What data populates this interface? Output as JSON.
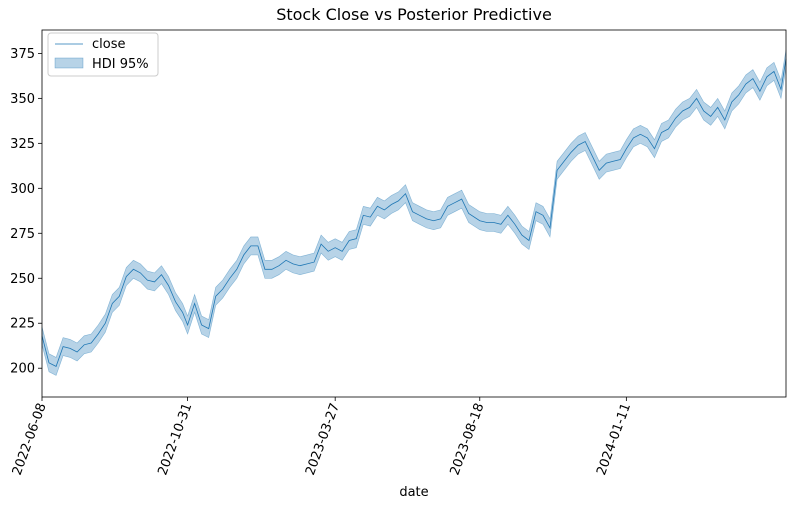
{
  "chart_data": {
    "type": "line",
    "title": "Stock Close vs Posterior Predictive",
    "xlabel": "date",
    "ylabel": "",
    "x_start": "2022-06-08",
    "x_end": "2024-06-18",
    "xtick_labels": [
      "2022-06-08",
      "2022-10-31",
      "2023-03-27",
      "2023-08-18",
      "2024-01-11"
    ],
    "ylim": [
      184,
      388
    ],
    "yticks": [
      200,
      225,
      250,
      275,
      300,
      325,
      350,
      375
    ],
    "grid": false,
    "legend": {
      "placement": "upper-left"
    },
    "series": [
      {
        "name": "close",
        "type": "line",
        "color": "#1f77b4",
        "x": [
          "2022-06-08",
          "2022-06-15",
          "2022-06-22",
          "2022-06-29",
          "2022-07-06",
          "2022-07-13",
          "2022-07-20",
          "2022-07-27",
          "2022-08-03",
          "2022-08-10",
          "2022-08-17",
          "2022-08-24",
          "2022-08-31",
          "2022-09-07",
          "2022-09-14",
          "2022-09-21",
          "2022-09-28",
          "2022-10-05",
          "2022-10-12",
          "2022-10-19",
          "2022-10-26",
          "2022-10-31",
          "2022-11-07",
          "2022-11-14",
          "2022-11-21",
          "2022-11-28",
          "2022-12-05",
          "2022-12-12",
          "2022-12-19",
          "2022-12-26",
          "2023-01-02",
          "2023-01-09",
          "2023-01-16",
          "2023-01-23",
          "2023-01-30",
          "2023-02-06",
          "2023-02-13",
          "2023-02-20",
          "2023-02-27",
          "2023-03-06",
          "2023-03-13",
          "2023-03-20",
          "2023-03-27",
          "2023-04-03",
          "2023-04-10",
          "2023-04-17",
          "2023-04-24",
          "2023-05-01",
          "2023-05-08",
          "2023-05-15",
          "2023-05-22",
          "2023-05-29",
          "2023-06-05",
          "2023-06-12",
          "2023-06-19",
          "2023-06-26",
          "2023-07-03",
          "2023-07-10",
          "2023-07-17",
          "2023-07-24",
          "2023-07-31",
          "2023-08-07",
          "2023-08-18",
          "2023-08-25",
          "2023-09-01",
          "2023-09-08",
          "2023-09-15",
          "2023-09-22",
          "2023-09-29",
          "2023-10-06",
          "2023-10-13",
          "2023-10-20",
          "2023-10-27",
          "2023-11-03",
          "2023-11-10",
          "2023-11-17",
          "2023-11-24",
          "2023-12-01",
          "2023-12-08",
          "2023-12-15",
          "2023-12-22",
          "2023-12-29",
          "2024-01-05",
          "2024-01-11",
          "2024-01-18",
          "2024-01-25",
          "2024-02-01",
          "2024-02-08",
          "2024-02-15",
          "2024-02-22",
          "2024-02-29",
          "2024-03-07",
          "2024-03-14",
          "2024-03-21",
          "2024-03-28",
          "2024-04-04",
          "2024-04-11",
          "2024-04-18",
          "2024-04-25",
          "2024-05-02",
          "2024-05-09",
          "2024-05-16",
          "2024-05-23",
          "2024-05-30",
          "2024-06-06",
          "2024-06-13",
          "2024-06-18"
        ],
        "values": [
          218,
          203,
          201,
          212,
          211,
          209,
          213,
          214,
          219,
          225,
          236,
          240,
          251,
          255,
          253,
          249,
          248,
          252,
          246,
          237,
          231,
          224,
          236,
          224,
          222,
          240,
          244,
          250,
          255,
          263,
          268,
          268,
          255,
          255,
          257,
          260,
          258,
          257,
          258,
          259,
          269,
          265,
          267,
          265,
          271,
          272,
          285,
          284,
          290,
          288,
          291,
          293,
          297,
          287,
          285,
          283,
          282,
          283,
          290,
          292,
          294,
          286,
          282,
          281,
          281,
          280,
          285,
          280,
          274,
          271,
          287,
          285,
          278,
          310,
          315,
          320,
          324,
          326,
          318,
          310,
          314,
          315,
          316,
          322,
          328,
          330,
          328,
          322,
          331,
          333,
          339,
          343,
          345,
          350,
          343,
          340,
          345,
          338,
          348,
          352,
          358,
          361,
          354,
          362,
          365,
          355,
          372
        ]
      },
      {
        "name": "HDI 95%",
        "type": "band",
        "color": "#1f77b4",
        "half_width": 5
      }
    ]
  }
}
